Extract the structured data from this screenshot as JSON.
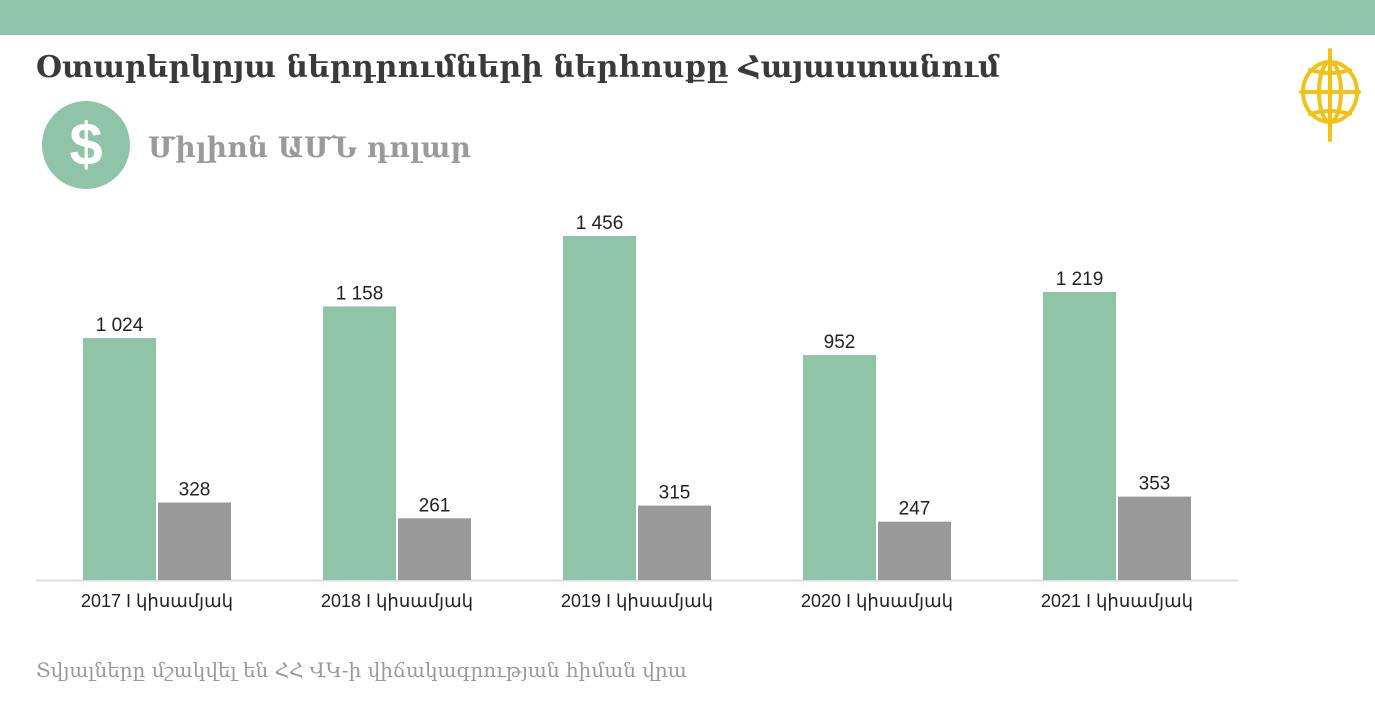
{
  "title": "Օտարերկրյա ներդրումների ներհոսքը Հայաստանում",
  "unit_label": "Միլիոն ԱՄՆ դոլար",
  "currency_symbol": "$",
  "source_note": "Տվյալները մշակվել են ՀՀ ՎԿ-ի վիճակագրության հիման վրա",
  "colors": {
    "band": "#8fc4a9",
    "title": "#3a3a3a",
    "subtitle": "#9a9a9a",
    "primary_series": "#8fc4a9",
    "secondary_series": "#999999",
    "logo": "#f2c21a",
    "axis": "#dddddd",
    "label": "#222222",
    "source": "#9a9a9a"
  },
  "icons": {
    "badge": "dollar-icon",
    "logo": "globe-logo"
  },
  "chart_data": {
    "type": "bar",
    "categories": [
      "2017 I կիսամյակ",
      "2018 I կիսամյակ",
      "2019 I կիսամյակ",
      "2020 I կիսամյակ",
      "2021 I կիսամյակ"
    ],
    "value_labels": [
      [
        "1 024",
        "328"
      ],
      [
        "1 158",
        "261"
      ],
      [
        "1 456",
        "315"
      ],
      [
        "952",
        "247"
      ],
      [
        "1 219",
        "353"
      ]
    ],
    "series": [
      {
        "values": [
          1024,
          1158,
          1456,
          952,
          1219
        ],
        "color": "#8fc4a9"
      },
      {
        "values": [
          328,
          261,
          315,
          247,
          353
        ],
        "color": "#999999"
      }
    ],
    "ylim": [
      0,
      1456
    ],
    "grid": false,
    "legend": "none"
  }
}
